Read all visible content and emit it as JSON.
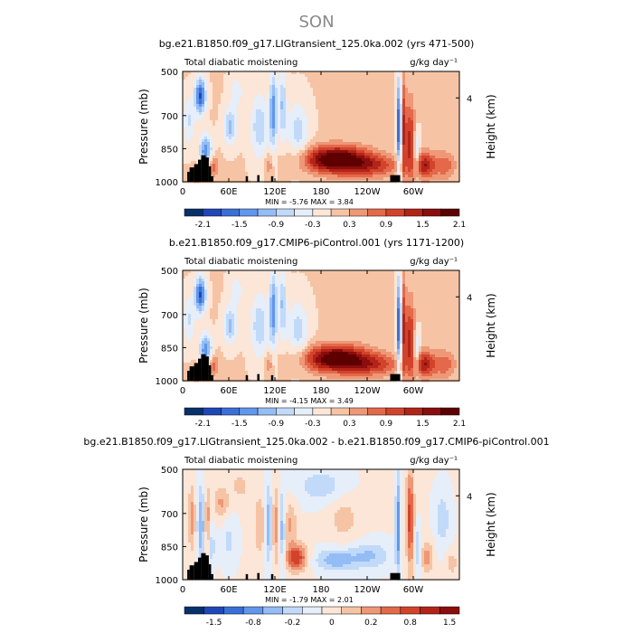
{
  "figure": {
    "title": "SON",
    "colors": {
      "title": "#8a8a8a",
      "frame": "#000000",
      "land": "#000000"
    }
  },
  "chart_data": [
    {
      "type": "heatmap",
      "title": "bg.e21.B1850.f09_g17.LIGtransient_125.0ka.002 (yrs 471-500)",
      "left_label": "Total diabatic moistening",
      "units": "g/kg day⁻¹",
      "xlabel": "",
      "ylabel": "Pressure (mb)",
      "ylabel_right": "Height (km)",
      "x_ticks": [
        "0",
        "60E",
        "120E",
        "180",
        "120W",
        "60W"
      ],
      "x_tick_values": [
        0,
        60,
        120,
        180,
        240,
        300
      ],
      "xlim": [
        0,
        360
      ],
      "y_ticks": [
        "500",
        "700",
        "850",
        "1000"
      ],
      "y_tick_values": [
        500,
        700,
        850,
        1000
      ],
      "ylim": [
        1000,
        500
      ],
      "y_right_ticks": [
        "4"
      ],
      "y_right_tick_values": [
        620
      ],
      "stats": "MIN = -5.76  MAX = 3.84",
      "colorbar_ticks": [
        "-2.1",
        "-1.5",
        "-0.9",
        "-0.3",
        "0.3",
        "0.9",
        "1.5",
        "2.1"
      ],
      "colorbar_colors": [
        "#08306b",
        "#1f47b8",
        "#3a6fd8",
        "#6196ec",
        "#94bdf6",
        "#c2daf9",
        "#e6eefa",
        "#fbe6d7",
        "#f6c4a5",
        "#ee9877",
        "#e3694a",
        "#d2432c",
        "#b22418",
        "#8b0d0d",
        "#5e0000"
      ],
      "vmin": -2.4,
      "vmax": 2.4
    },
    {
      "type": "heatmap",
      "title": "b.e21.B1850.f09_g17.CMIP6-piControl.001 (yrs 1171-1200)",
      "left_label": "Total diabatic moistening",
      "units": "g/kg day⁻¹",
      "xlabel": "",
      "ylabel": "Pressure (mb)",
      "ylabel_right": "Height (km)",
      "x_ticks": [
        "0",
        "60E",
        "120E",
        "180",
        "120W",
        "60W"
      ],
      "x_tick_values": [
        0,
        60,
        120,
        180,
        240,
        300
      ],
      "xlim": [
        0,
        360
      ],
      "y_ticks": [
        "500",
        "700",
        "850",
        "1000"
      ],
      "y_tick_values": [
        500,
        700,
        850,
        1000
      ],
      "ylim": [
        1000,
        500
      ],
      "y_right_ticks": [
        "4"
      ],
      "y_right_tick_values": [
        620
      ],
      "stats": "MIN = -4.15  MAX = 3.49",
      "colorbar_ticks": [
        "-2.1",
        "-1.5",
        "-0.9",
        "-0.3",
        "0.3",
        "0.9",
        "1.5",
        "2.1"
      ],
      "colorbar_colors": [
        "#08306b",
        "#1f47b8",
        "#3a6fd8",
        "#6196ec",
        "#94bdf6",
        "#c2daf9",
        "#e6eefa",
        "#fbe6d7",
        "#f6c4a5",
        "#ee9877",
        "#e3694a",
        "#d2432c",
        "#b22418",
        "#8b0d0d",
        "#5e0000"
      ],
      "vmin": -2.4,
      "vmax": 2.4
    },
    {
      "type": "heatmap",
      "title": "bg.e21.B1850.f09_g17.LIGtransient_125.0ka.002 - b.e21.B1850.f09_g17.CMIP6-piControl.001",
      "left_label": "Total diabatic moistening",
      "units": "g/kg day⁻¹",
      "xlabel": "",
      "ylabel": "Pressure (mb)",
      "ylabel_right": "Height (km)",
      "x_ticks": [
        "0",
        "60E",
        "120E",
        "180",
        "120W",
        "60W"
      ],
      "x_tick_values": [
        0,
        60,
        120,
        180,
        240,
        300
      ],
      "xlim": [
        0,
        360
      ],
      "y_ticks": [
        "500",
        "700",
        "850",
        "1000"
      ],
      "y_tick_values": [
        500,
        700,
        850,
        1000
      ],
      "ylim": [
        1000,
        500
      ],
      "y_right_ticks": [
        "4"
      ],
      "y_right_tick_values": [
        620
      ],
      "stats": "MIN = -1.79  MAX = 2.01",
      "colorbar_ticks": [
        "-1.5",
        "-0.8",
        "-0.2",
        "0",
        "0.2",
        "0.8",
        "1.5"
      ],
      "colorbar_colors": [
        "#08306b",
        "#1f47b8",
        "#3a6fd8",
        "#6196ec",
        "#94bdf6",
        "#c2daf9",
        "#e6eefa",
        "#fbe6d7",
        "#f6c4a5",
        "#ee9877",
        "#e3694a",
        "#d2432c",
        "#b22418",
        "#8b0d0d"
      ],
      "vmin": -2.0,
      "vmax": 2.0
    }
  ]
}
